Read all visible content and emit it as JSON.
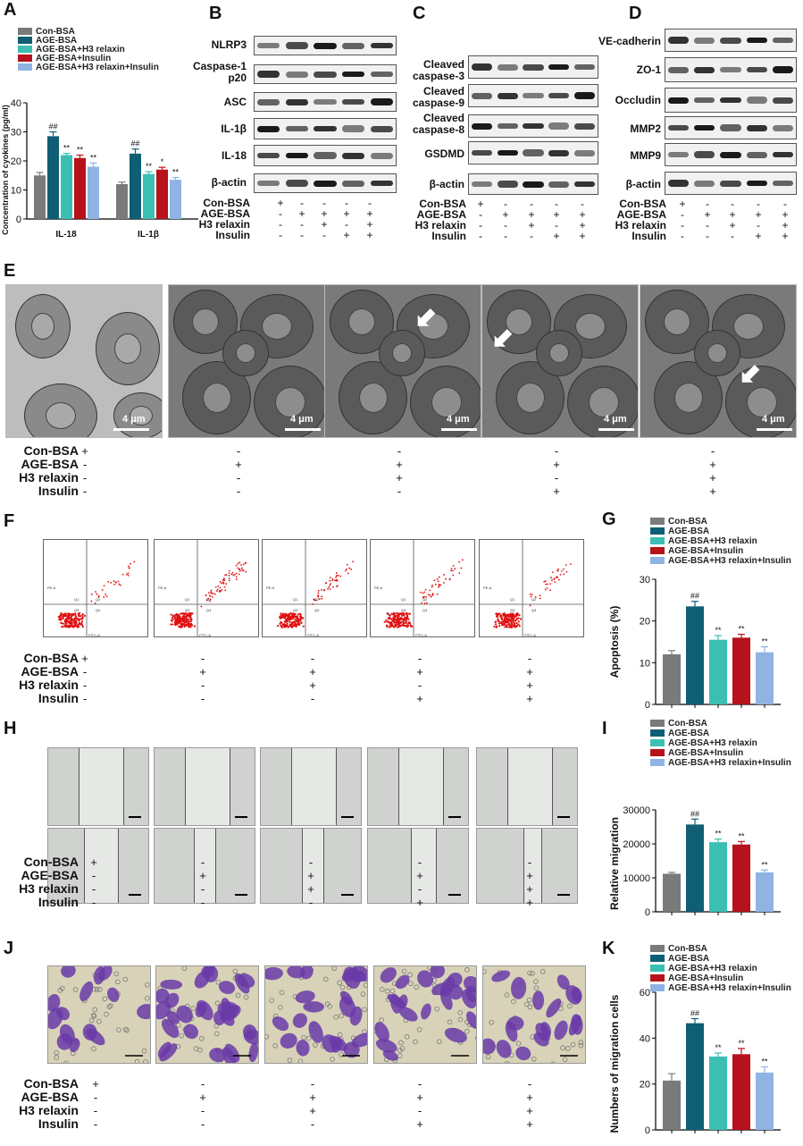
{
  "panels": {
    "A": "A",
    "B": "B",
    "C": "C",
    "D": "D",
    "E": "E",
    "F": "F",
    "G": "G",
    "H": "H",
    "I": "I",
    "J": "J",
    "K": "K"
  },
  "treatments": {
    "rows": [
      "Con-BSA",
      "AGE-BSA",
      "H3 relaxin",
      "Insulin"
    ],
    "signs": [
      [
        "+",
        "-",
        "-",
        "-",
        "-"
      ],
      [
        "-",
        "+",
        "+",
        "+",
        "+"
      ],
      [
        "-",
        "-",
        "+",
        "-",
        "+"
      ],
      [
        "-",
        "-",
        "-",
        "+",
        "+"
      ]
    ]
  },
  "blots": {
    "B": [
      "NLRP3",
      "Caspase-1 p20",
      "ASC",
      "IL-1β",
      "IL-18",
      "β-actin"
    ],
    "C": [
      "Cleaved caspase-3",
      "Cleaved caspase-9",
      "Cleaved caspase-8",
      "GSDMD",
      "β-actin"
    ],
    "D": [
      "VE-cadherin",
      "ZO-1",
      "Occludin",
      "MMP2",
      "MMP9",
      "β-actin"
    ]
  },
  "tem_scale": "4 μm",
  "legend_labels": [
    "Con-BSA",
    "AGE-BSA",
    "AGE-BSA+H3 relaxin",
    "AGE-BSA+Insulin",
    "AGE-BSA+H3 relaxin+Insulin"
  ],
  "colors": {
    "con": "#7a7a7a",
    "age": "#0f5e74",
    "relaxin": "#3cbfb3",
    "insulin": "#b5121b",
    "combo": "#8fb3e3"
  },
  "flow_axis": {
    "x": "FITC-A",
    "y": "PE-A",
    "quadrants": [
      "Q1",
      "Q2",
      "Q3",
      "Q4"
    ]
  },
  "chart_data": [
    {
      "panel": "A",
      "type": "bar",
      "categories": [
        "IL-18",
        "IL-1β"
      ],
      "series": [
        {
          "name": "Con-BSA",
          "values": [
            15,
            12
          ],
          "errors": [
            1,
            0.7
          ]
        },
        {
          "name": "AGE-BSA",
          "values": [
            28.5,
            22.5
          ],
          "errors": [
            1.5,
            1.6
          ]
        },
        {
          "name": "AGE-BSA+H3 relaxin",
          "values": [
            22,
            15.5
          ],
          "errors": [
            0.6,
            0.8
          ]
        },
        {
          "name": "AGE-BSA+Insulin",
          "values": [
            21,
            17
          ],
          "errors": [
            1,
            0.8
          ]
        },
        {
          "name": "AGE-BSA+H3 relaxin+Insulin",
          "values": [
            18,
            13.5
          ],
          "errors": [
            1.3,
            0.8
          ]
        }
      ],
      "annotations": [
        [
          "",
          "##",
          "**",
          "**",
          "**"
        ],
        [
          "",
          "##",
          "**",
          "*",
          "**"
        ]
      ],
      "ylabel": "Concentration of cyokines (pg/ml)",
      "ylim": [
        0,
        40
      ],
      "yticks": [
        "0",
        "10",
        "20",
        "30",
        "40"
      ]
    },
    {
      "panel": "G",
      "type": "bar",
      "categories": [
        "Con-BSA",
        "AGE-BSA",
        "AGE-BSA+H3 relaxin",
        "AGE-BSA+Insulin",
        "AGE-BSA+H3 relaxin+Insulin"
      ],
      "values": [
        12,
        23.5,
        15.5,
        16,
        12.5
      ],
      "errors": [
        0.9,
        1.2,
        1.0,
        0.8,
        1.3
      ],
      "annotations": [
        "",
        "##",
        "**",
        "**",
        "**"
      ],
      "ylabel": "Apoptosis (%)",
      "ylim": [
        0,
        30
      ],
      "yticks": [
        "0",
        "10",
        "20",
        "30"
      ]
    },
    {
      "panel": "I",
      "type": "bar",
      "categories": [
        "Con-BSA",
        "AGE-BSA",
        "AGE-BSA+H3 relaxin",
        "AGE-BSA+Insulin",
        "AGE-BSA+H3 relaxin+Insulin"
      ],
      "values": [
        11200,
        25700,
        20500,
        19800,
        11600
      ],
      "errors": [
        400,
        1600,
        900,
        900,
        700
      ],
      "annotations": [
        "",
        "##",
        "**",
        "**",
        "**"
      ],
      "ylabel": "Relative migration",
      "ylim": [
        0,
        30000
      ],
      "yticks": [
        "0",
        "10000",
        "20000",
        "30000"
      ]
    },
    {
      "panel": "K",
      "type": "bar",
      "categories": [
        "Con-BSA",
        "AGE-BSA",
        "AGE-BSA+H3 relaxin",
        "AGE-BSA+Insulin",
        "AGE-BSA+H3 relaxin+Insulin"
      ],
      "values": [
        21.5,
        46.5,
        32,
        33,
        25
      ],
      "errors": [
        3,
        2,
        1.5,
        2.5,
        2.5
      ],
      "annotations": [
        "",
        "##",
        "**",
        "**",
        "**"
      ],
      "ylabel": "Numbers of migration cells",
      "ylim": [
        0,
        60
      ],
      "yticks": [
        "0",
        "20",
        "40",
        "60"
      ]
    }
  ]
}
